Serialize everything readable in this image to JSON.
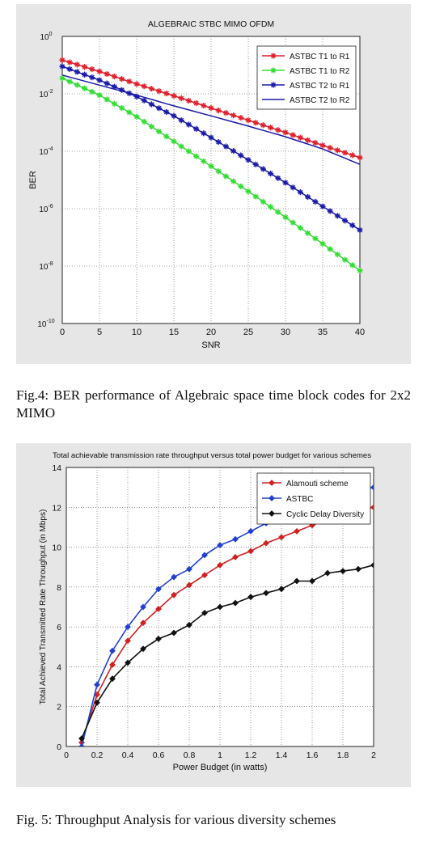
{
  "captions": {
    "fig4": "Fig.4: BER performance of Algebraic space time block codes for 2x2 MIMO",
    "fig5": "Fig. 5: Throughput Analysis for various diversity schemes"
  },
  "chart_data": [
    {
      "type": "line",
      "title": "ALGEBRAIC STBC MIMO OFDM",
      "xlabel": "SNR",
      "ylabel": "BER",
      "xlim": [
        0,
        40
      ],
      "ylim": [
        1e-10,
        1
      ],
      "yscale": "log",
      "xticks": [
        0,
        5,
        10,
        15,
        20,
        25,
        30,
        35,
        40
      ],
      "yticks": [
        {
          "base": "10",
          "exp": "0",
          "v": 1
        },
        {
          "base": "10",
          "exp": "-2",
          "v": 0.01
        },
        {
          "base": "10",
          "exp": "-4",
          "v": 0.0001
        },
        {
          "base": "10",
          "exp": "-6",
          "v": 1e-06
        },
        {
          "base": "10",
          "exp": "-8",
          "v": 1e-08
        },
        {
          "base": "10",
          "exp": "-10",
          "v": 1e-10
        }
      ],
      "grid": true,
      "legend": "top-right",
      "series": [
        {
          "name": "ASTBC T1 to R1",
          "color": "#e0202c",
          "marker": "star",
          "x": [
            0,
            5,
            10,
            15,
            20,
            25,
            30,
            35,
            40
          ],
          "y": [
            0.15,
            0.06,
            0.022,
            0.0085,
            0.0032,
            0.0012,
            0.00045,
            0.00016,
            6e-05
          ]
        },
        {
          "name": "ASTBC T1 to R2",
          "color": "#33dd33",
          "marker": "star",
          "x": [
            0,
            5,
            10,
            15,
            20,
            25,
            30,
            35,
            40
          ],
          "y": [
            0.035,
            0.009,
            0.0016,
            0.00022,
            3e-05,
            4e-06,
            5e-07,
            6e-08,
            7e-09
          ]
        },
        {
          "name": "ASTBC T2 to R1",
          "color": "#1a1aa8",
          "marker": "star",
          "x": [
            0,
            5,
            10,
            15,
            20,
            25,
            30,
            35,
            40
          ],
          "y": [
            0.09,
            0.03,
            0.008,
            0.0017,
            0.0003,
            5e-05,
            8e-06,
            1.2e-06,
            1.8e-07
          ]
        },
        {
          "name": "ASTBC T2 to R2",
          "color": "#1a1aa8",
          "marker": "none",
          "x": [
            0,
            5,
            10,
            15,
            20,
            25,
            30,
            35,
            40
          ],
          "y": [
            0.045,
            0.02,
            0.009,
            0.0038,
            0.0017,
            0.00075,
            0.00032,
            0.00012,
            3.5e-05
          ]
        }
      ]
    },
    {
      "type": "line",
      "title": "Total achievable transmission rate throughput versus total power budget for various schemes",
      "xlabel": "Power Budget (in watts)",
      "ylabel": "Total Achieved Transmitted Rate Throughput (in Mbps)",
      "xlim": [
        0,
        2
      ],
      "ylim": [
        0,
        14
      ],
      "xticks": [
        "0",
        "0.2",
        "0.4",
        "0.6",
        "0.8",
        "1",
        "1.2",
        "1.4",
        "1.6",
        "1.8",
        "2"
      ],
      "yticks": [
        "0",
        "2",
        "4",
        "6",
        "8",
        "10",
        "12",
        "14"
      ],
      "grid": true,
      "legend": "top-right",
      "series": [
        {
          "name": "Alamouti scheme",
          "color": "#d02020",
          "x": [
            0.1,
            0.2,
            0.3,
            0.4,
            0.5,
            0.6,
            0.7,
            0.8,
            0.9,
            1.0,
            1.1,
            1.2,
            1.3,
            1.4,
            1.5,
            1.6,
            1.7,
            1.8,
            1.9,
            2.0
          ],
          "y": [
            0.2,
            2.6,
            4.1,
            5.3,
            6.2,
            6.9,
            7.6,
            8.1,
            8.6,
            9.1,
            9.5,
            9.8,
            10.2,
            10.5,
            10.8,
            11.1,
            11.4,
            11.6,
            11.8,
            12.0
          ]
        },
        {
          "name": "ASTBC",
          "color": "#2040d0",
          "x": [
            0.1,
            0.2,
            0.3,
            0.4,
            0.5,
            0.6,
            0.7,
            0.8,
            0.9,
            1.0,
            1.1,
            1.2,
            1.3,
            1.4,
            1.5,
            1.6,
            1.7,
            1.8,
            1.9,
            2.0
          ],
          "y": [
            0.0,
            3.1,
            4.8,
            6.0,
            7.0,
            7.9,
            8.5,
            8.9,
            9.6,
            10.1,
            10.4,
            10.8,
            11.2,
            11.5,
            11.8,
            12.1,
            12.4,
            12.6,
            12.8,
            13.0
          ]
        },
        {
          "name": "Cyclic Delay Diversity",
          "color": "#111111",
          "x": [
            0.1,
            0.2,
            0.3,
            0.4,
            0.5,
            0.6,
            0.7,
            0.8,
            0.9,
            1.0,
            1.1,
            1.2,
            1.3,
            1.4,
            1.5,
            1.6,
            1.7,
            1.8,
            1.9,
            2.0
          ],
          "y": [
            0.4,
            2.2,
            3.4,
            4.2,
            4.9,
            5.4,
            5.7,
            6.1,
            6.7,
            7.0,
            7.2,
            7.5,
            7.7,
            7.9,
            8.3,
            8.3,
            8.7,
            8.8,
            8.9,
            9.1
          ]
        }
      ]
    }
  ]
}
